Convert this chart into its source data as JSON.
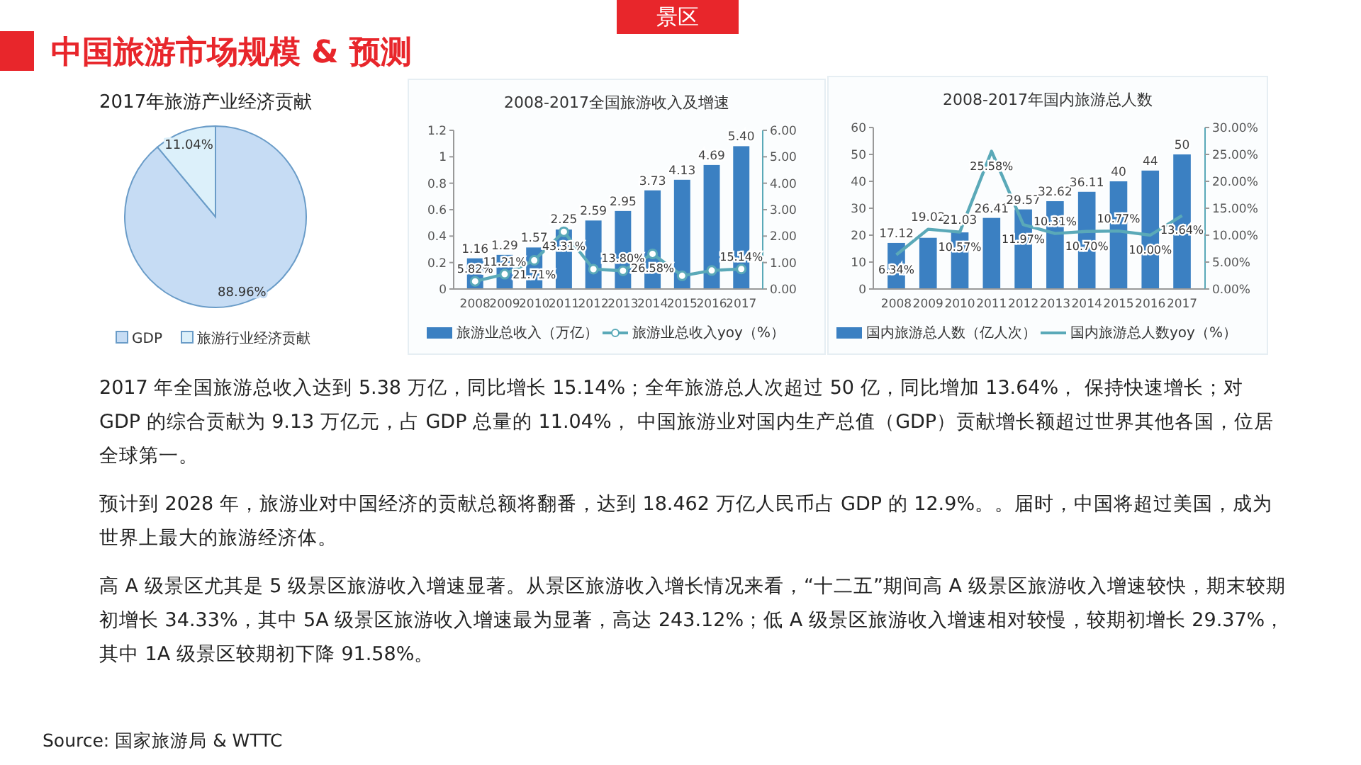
{
  "chart_data": [
    {
      "type": "other",
      "title": "中国旅游市场规模 & 预测",
      "subtitle": "景区",
      "annotations": [
        "2017 年全国旅游总收入达到 5.38 万亿，同比增长 15.14%；全年旅游总人次超过 50 亿，同比增加 13.64%， 保持快速增长；对 GDP 的综合贡献为 9.13 万亿元，占 GDP 总量的 11.04%， 中国旅游业对国内生产总值（GDP）贡献增长额超过世界其他各国，位居全球第一。",
        "预计到 2028 年，旅游业对中国经济的贡献总额将翻番，达到 18.462 万亿人民币占 GDP 的 12.9%。。届时，中国将超过美国，成为世界上最大的旅游经济体。",
        "高 A 级景区尤其是 5 级景区旅游收入增速显著。从景区旅游收入增长情况来看，“十二五”期间高 A 级景区旅游收入增速较快，期末较期初增长 34.33%，其中 5A 级景区旅游收入增速最为显著，高达 243.12%；低 A 级景区旅游收入增速相对较慢，较期初增长 29.37%，其中 1A 级景区较期初下降 91.58%。",
        "Source:  国家旅游局 & WTTC"
      ]
    },
    {
      "type": "pie",
      "title": "2017年旅游产业经济贡献",
      "categories": [
        "GDP",
        "旅游行业经济贡献"
      ],
      "values": [
        88.96,
        11.04
      ],
      "colors": [
        "#c6dcf4",
        "#dcf0fa"
      ],
      "value_labels": [
        "88.96%",
        "11.04%"
      ],
      "legend": "bottom"
    },
    {
      "type": "bar",
      "title": "2008-2017全国旅游收入及增速",
      "categories": [
        "2008",
        "2009",
        "2010",
        "2011",
        "2012",
        "2013",
        "2014",
        "2015",
        "2016",
        "2017"
      ],
      "ylim": [
        0,
        1.2
      ],
      "yticks": [
        0,
        0.2,
        0.4,
        0.6,
        0.8,
        1,
        1.2
      ],
      "y2lim": [
        0,
        6
      ],
      "y2ticks": [
        {
          "value": 0,
          "label": "0.00"
        },
        {
          "value": 1,
          "label": "1.00"
        },
        {
          "value": 2,
          "label": "2.00"
        },
        {
          "value": 3,
          "label": "3.00"
        },
        {
          "value": 4,
          "label": "4.00"
        },
        {
          "value": 5,
          "label": "5.00"
        },
        {
          "value": 6,
          "label": "6.00"
        }
      ],
      "legend": "bottom",
      "series": [
        {
          "name": "旅游业总收入（万亿）",
          "type": "bar",
          "axis": "y2",
          "color": "#3b80c2",
          "values": [
            1.16,
            1.29,
            1.57,
            2.25,
            2.59,
            2.95,
            3.73,
            4.13,
            4.69,
            5.4
          ],
          "value_labels": [
            "1.16",
            "1.29",
            "1.57",
            "2.25",
            "2.59",
            "2.95",
            "3.73",
            "4.13",
            "4.69",
            "5.40"
          ]
        },
        {
          "name": "旅游业总收入yoy（%）",
          "type": "line",
          "axis": "y",
          "color": "#5aa9b8",
          "marker": "circle",
          "values": [
            0.0582,
            0.1121,
            0.2171,
            0.4331,
            0.15,
            0.138,
            0.2658,
            0.1,
            0.14,
            0.1514
          ],
          "value_labels": [
            "5.82%",
            "11.21%",
            "21.71%",
            "43.31%",
            null,
            "13.80%",
            "26.58%",
            null,
            null,
            "15.14%"
          ]
        }
      ]
    },
    {
      "type": "bar",
      "title": "2008-2017年国内旅游总人数",
      "categories": [
        "2008",
        "2009",
        "2010",
        "2011",
        "2012",
        "2013",
        "2014",
        "2015",
        "2016",
        "2017"
      ],
      "ylim": [
        0,
        60
      ],
      "yticks": [
        0,
        10,
        20,
        30,
        40,
        50,
        60
      ],
      "y2lim": [
        0,
        30
      ],
      "y2ticks": [
        {
          "value": 0,
          "label": "0.00%"
        },
        {
          "value": 5,
          "label": "5.00%"
        },
        {
          "value": 10,
          "label": "10.00%"
        },
        {
          "value": 15,
          "label": "15.00%"
        },
        {
          "value": 20,
          "label": "20.00%"
        },
        {
          "value": 25,
          "label": "25.00%"
        },
        {
          "value": 30,
          "label": "30.00%"
        }
      ],
      "legend": "bottom",
      "series": [
        {
          "name": "国内旅游总人数（亿人次）",
          "type": "bar",
          "color": "#3b80c2",
          "values": [
            17.12,
            19.02,
            21.03,
            26.41,
            29.57,
            32.62,
            36.11,
            40,
            44,
            50
          ],
          "value_labels": [
            "17.12",
            "19.02",
            "21.03",
            "26.41",
            "29.57",
            "32.62",
            "36.11",
            "40",
            "44",
            "50"
          ]
        },
        {
          "name": "国内旅游总人数yoy（%）",
          "type": "line",
          "axis": "y2",
          "color": "#5aa9b8",
          "values": [
            6.34,
            11.1,
            10.57,
            25.58,
            11.97,
            10.31,
            10.7,
            10.77,
            10,
            13.64
          ],
          "value_labels": [
            "6.34%",
            null,
            "10.57%",
            "25.58%",
            "11.97%",
            "10.31%",
            "10.70%",
            "10.77%",
            "10.00%",
            "13.64%"
          ]
        }
      ]
    }
  ]
}
